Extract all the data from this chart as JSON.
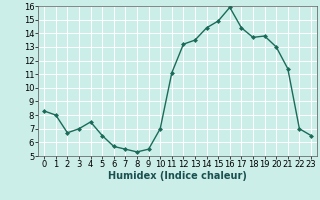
{
  "x": [
    0,
    1,
    2,
    3,
    4,
    5,
    6,
    7,
    8,
    9,
    10,
    11,
    12,
    13,
    14,
    15,
    16,
    17,
    18,
    19,
    20,
    21,
    22,
    23
  ],
  "y": [
    8.3,
    8.0,
    6.7,
    7.0,
    7.5,
    6.5,
    5.7,
    5.5,
    5.3,
    5.5,
    7.0,
    11.1,
    13.2,
    13.5,
    14.4,
    14.9,
    15.9,
    14.4,
    13.7,
    13.8,
    13.0,
    11.4,
    7.0,
    6.5
  ],
  "line_color": "#1a6b5a",
  "marker": "D",
  "marker_size": 2,
  "bg_color": "#cceee8",
  "grid_color": "#ffffff",
  "xlabel": "Humidex (Indice chaleur)",
  "xlabel_fontsize": 7,
  "xlim": [
    -0.5,
    23.5
  ],
  "ylim": [
    5,
    16
  ],
  "yticks": [
    5,
    6,
    7,
    8,
    9,
    10,
    11,
    12,
    13,
    14,
    15,
    16
  ],
  "xticks": [
    0,
    1,
    2,
    3,
    4,
    5,
    6,
    7,
    8,
    9,
    10,
    11,
    12,
    13,
    14,
    15,
    16,
    17,
    18,
    19,
    20,
    21,
    22,
    23
  ],
  "tick_fontsize": 6
}
